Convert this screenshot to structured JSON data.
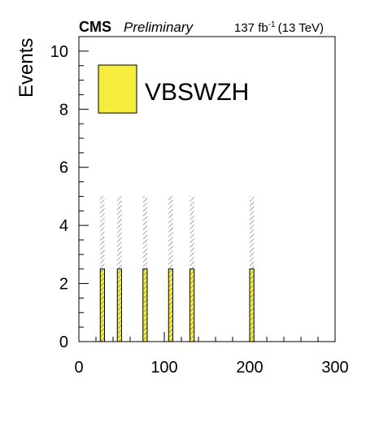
{
  "header": {
    "experiment": "CMS",
    "status": "Preliminary",
    "lumi_value": "137 fb",
    "lumi_exp": "-1",
    "energy": "(13 TeV)"
  },
  "chart_data": {
    "type": "bar",
    "title": "",
    "xlabel": "",
    "ylabel": "Events",
    "xlim": [
      0,
      300
    ],
    "ylim": [
      0,
      10.5
    ],
    "xticks": [
      "0",
      "100",
      "200",
      "300"
    ],
    "yticks": [
      "0",
      "2",
      "4",
      "6",
      "8",
      "10"
    ],
    "bin_width": 5,
    "series": [
      {
        "name": "VBSWZH",
        "color": "#f5ec3e",
        "bins_low_edge": [
          25,
          45,
          75,
          105,
          130,
          200
        ],
        "values": [
          2.5,
          2.5,
          2.5,
          2.5,
          2.5,
          2.5
        ],
        "uncertainty_band_top": [
          5.0,
          5.0,
          5.0,
          5.0,
          5.0,
          5.0
        ]
      }
    ],
    "legend": {
      "placement": "top-left",
      "entries": [
        "VBSWZH"
      ]
    },
    "grid": false
  }
}
